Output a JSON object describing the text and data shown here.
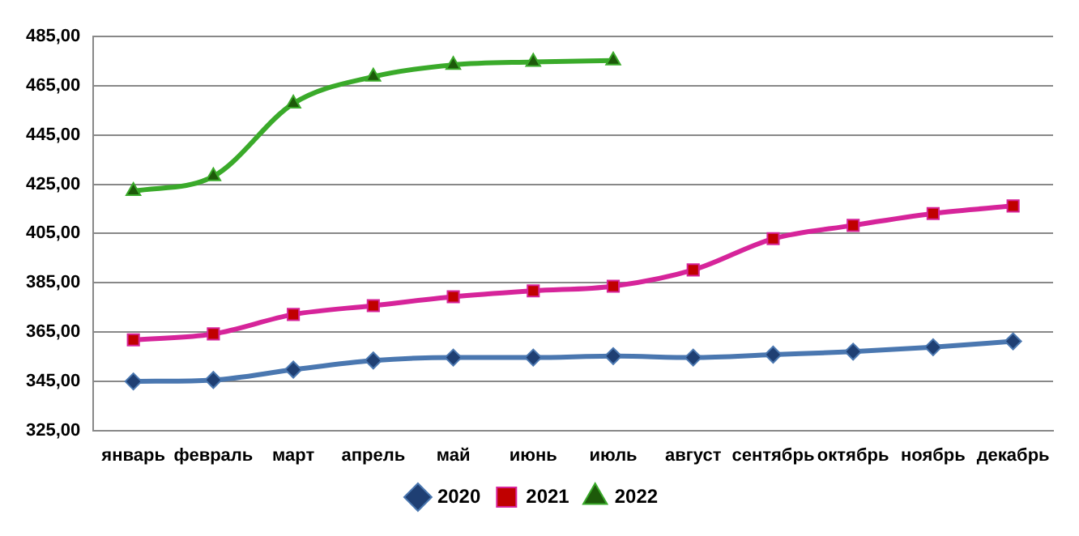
{
  "chart_data": {
    "type": "line",
    "categories": [
      "январь",
      "февраль",
      "март",
      "апрель",
      "май",
      "июнь",
      "июль",
      "август",
      "сентябрь",
      "октябрь",
      "ноябрь",
      "декабрь"
    ],
    "series": [
      {
        "name": "2020",
        "color": "#4a77b0",
        "marker": "diamond",
        "values": [
          344.9,
          345.5,
          349.7,
          353.4,
          354.6,
          354.6,
          355.2,
          354.6,
          355.8,
          357.0,
          358.8,
          361.2
        ]
      },
      {
        "name": "2021",
        "color": "#d6249a",
        "marker": "square",
        "values": [
          361.8,
          364.2,
          372.1,
          375.7,
          379.3,
          381.7,
          383.6,
          390.2,
          402.9,
          408.3,
          413.1,
          416.2
        ]
      },
      {
        "name": "2022",
        "color": "#3aaa2a",
        "marker": "triangle",
        "values": [
          422.2,
          428.2,
          457.8,
          468.7,
          473.5,
          474.7,
          475.3,
          null,
          null,
          null,
          null,
          null
        ]
      }
    ],
    "ylim": [
      325,
      485
    ],
    "yticks": [
      {
        "value": 325,
        "label": "325,00"
      },
      {
        "value": 345,
        "label": "345,00"
      },
      {
        "value": 365,
        "label": "365,00"
      },
      {
        "value": 385,
        "label": "385,00"
      },
      {
        "value": 405,
        "label": "405,00"
      },
      {
        "value": 425,
        "label": "425,00"
      },
      {
        "value": 445,
        "label": "445,00"
      },
      {
        "value": 465,
        "label": "465,00"
      },
      {
        "value": 485,
        "label": "485,00"
      }
    ],
    "grid": "y",
    "legend": "bottom",
    "line_style": "solid"
  }
}
